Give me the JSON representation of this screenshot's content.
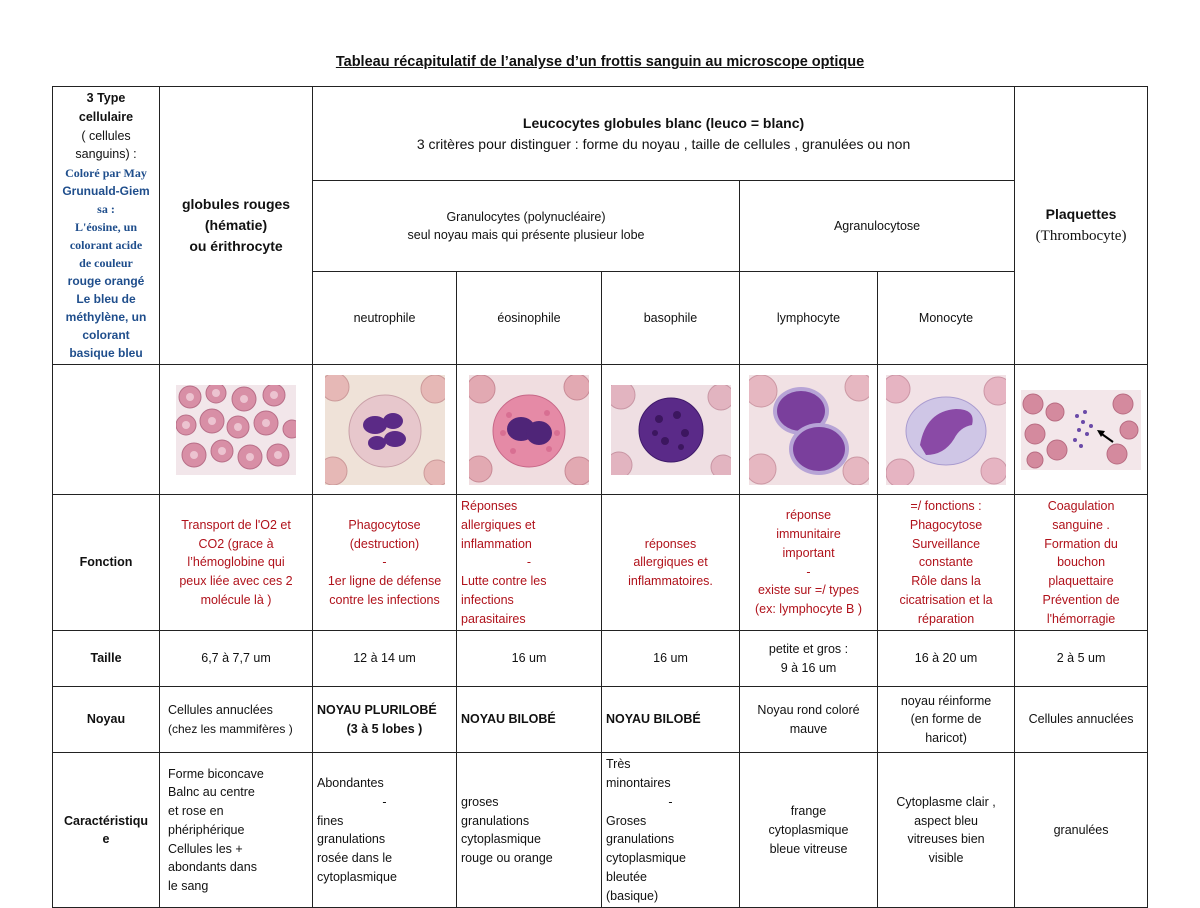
{
  "title": "Tableau récapitulatif de l’analyse d’un frottis sanguin au microscope optique",
  "corner": {
    "line1": "3 Type",
    "line2": "cellulaire",
    "line3": "( cellules",
    "line4": "sanguins) :",
    "coloration": [
      "Coloré par May",
      "Grunuald-Giem",
      "sa :",
      "L'éosine, un",
      "colorant acide",
      "de couleur",
      "rouge orangé",
      "Le bleu de",
      "méthylène, un",
      "colorant",
      "basique bleu"
    ]
  },
  "gr_header": [
    "globules rouges",
    "(hématie)",
    "ou érithrocyte"
  ],
  "leuco_header": {
    "title": "Leucocytes globules blanc (leuco = blanc)",
    "subtitle": "3 critères pour distinguer : forme du noyau , taille de cellules , granulées ou non"
  },
  "granulo_header": {
    "line1": "Granulocytes (polynucléaire)",
    "line2": "seul noyau mais qui présente plusieur lobe"
  },
  "agranulo_header": "Agranulocytose",
  "plaquettes_header": {
    "line1": "Plaquettes",
    "line2": "(Thrombocyte)"
  },
  "cell_types": [
    "neutrophile",
    "éosinophile",
    "basophile",
    "lymphocyte",
    "Monocyte"
  ],
  "row_labels": {
    "fonction": "Fonction",
    "taille": "Taille",
    "noyau": "Noyau",
    "caracteristique": [
      "Caractéristiqu",
      "e"
    ]
  },
  "fonction": {
    "gr": [
      "Transport de l'O2 et",
      "CO2 (grace à",
      "l’hémoglobine qui",
      "peux liée avec ces 2",
      "molécule là )"
    ],
    "neutro": [
      "Phagocytose",
      "(destruction)",
      "-",
      "1er ligne de défense",
      "contre les infections"
    ],
    "eosino": [
      "Réponses",
      "allergiques et",
      "inflammation",
      "-",
      "Lutte contre les",
      "infections",
      "parasitaires"
    ],
    "baso": [
      "réponses",
      "allergiques et",
      "inflammatoires."
    ],
    "lympho": [
      "réponse",
      "immunitaire",
      "important",
      "-",
      "existe sur =/ types",
      "(ex: lymphocyte B )"
    ],
    "mono": [
      "=/ fonctions :",
      "Phagocytose",
      "Surveillance",
      "constante",
      "Rôle dans la",
      "cicatrisation et la",
      "réparation"
    ],
    "plaq": [
      "Coagulation",
      "sanguine .",
      "Formation du",
      "bouchon",
      "plaquettaire",
      "Prévention de",
      "l'hémorragie"
    ]
  },
  "taille": {
    "gr": "6,7 à 7,7 um",
    "neutro": "12 à 14 um",
    "eosino": "16 um",
    "baso": "16 um",
    "lympho": [
      "petite et gros :",
      "9 à 16 um"
    ],
    "mono": "16 à 20 um",
    "plaq": "2 à 5 um"
  },
  "noyau": {
    "gr": [
      "Cellules annuclées",
      "(chez les mammifères )"
    ],
    "neutro": [
      "NOYAU PLURILOBÉ",
      "(3 à 5  lobes )"
    ],
    "eosino": "NOYAU BILOBÉ",
    "baso": "NOYAU BILOBÉ",
    "lympho": [
      "Noyau rond coloré",
      "mauve"
    ],
    "mono": [
      "noyau réinforme",
      "(en forme de",
      "haricot)"
    ],
    "plaq": "Cellules annuclées"
  },
  "caracteristique": {
    "gr": [
      "Forme biconcave",
      "Balnc au centre",
      "et rose en",
      "phériphérique",
      "Cellules les +",
      "abondants dans",
      "le sang"
    ],
    "neutro": [
      "Abondantes",
      "-",
      "fines",
      "granulations",
      "rosée dans le",
      "cytoplasmique"
    ],
    "eosino": [
      "groses",
      "granulations",
      "cytoplasmique",
      "rouge ou orange"
    ],
    "baso": [
      "Très",
      "minontaires",
      "-",
      "Groses",
      "granulations",
      "cytoplasmique",
      "bleutée",
      "(basique)"
    ],
    "lympho": [
      "frange",
      "cytoplasmique",
      "bleue vitreuse"
    ],
    "mono": [
      "Cytoplasme clair ,",
      "aspect bleu",
      "vitreuses bien",
      "visible"
    ],
    "plaq": "granulées"
  },
  "colors": {
    "function_text": "#b0121b",
    "stain_note": "#1f4e8c",
    "rbc": "#d88fa6",
    "nucleus": "#6b2f8f"
  },
  "images": [
    "rbc-micrograph",
    "neutrophil-micrograph",
    "eosinophil-micrograph",
    "basophil-micrograph",
    "lymphocyte-micrograph",
    "monocyte-micrograph",
    "platelet-micrograph"
  ]
}
